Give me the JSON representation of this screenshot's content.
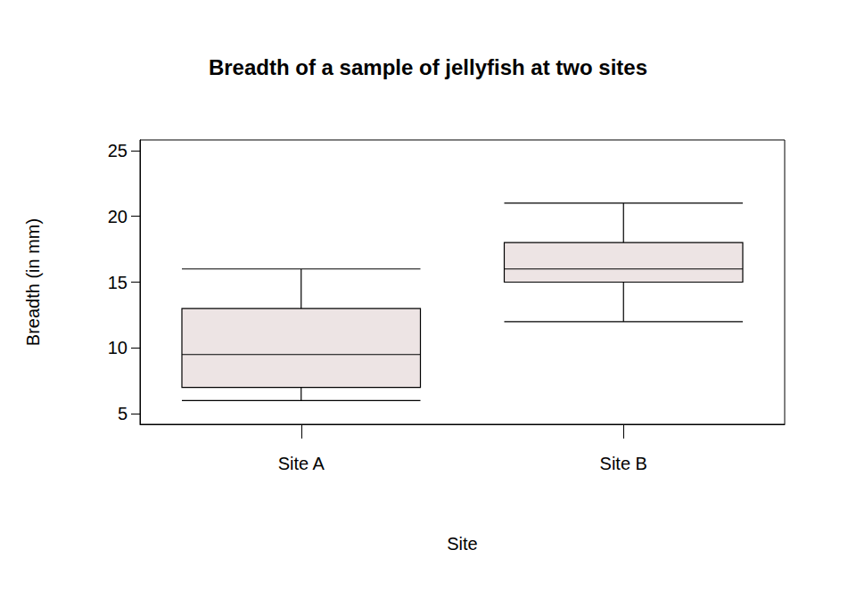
{
  "chart_data": {
    "type": "boxplot",
    "title": "Breadth of a sample of jellyfish at two sites",
    "x_label": "Site",
    "y_label": "Breadth (in mm)",
    "categories": [
      "Site A",
      "Site B"
    ],
    "values": [
      [
        6,
        7,
        9.5,
        13,
        16
      ],
      [
        12,
        15,
        16,
        18,
        21
      ]
    ],
    "color": "#ede4e4",
    "ylim": [
      4.2,
      25.8
    ],
    "yticks": [
      5,
      10,
      15,
      20,
      25
    ],
    "grid": false
  }
}
